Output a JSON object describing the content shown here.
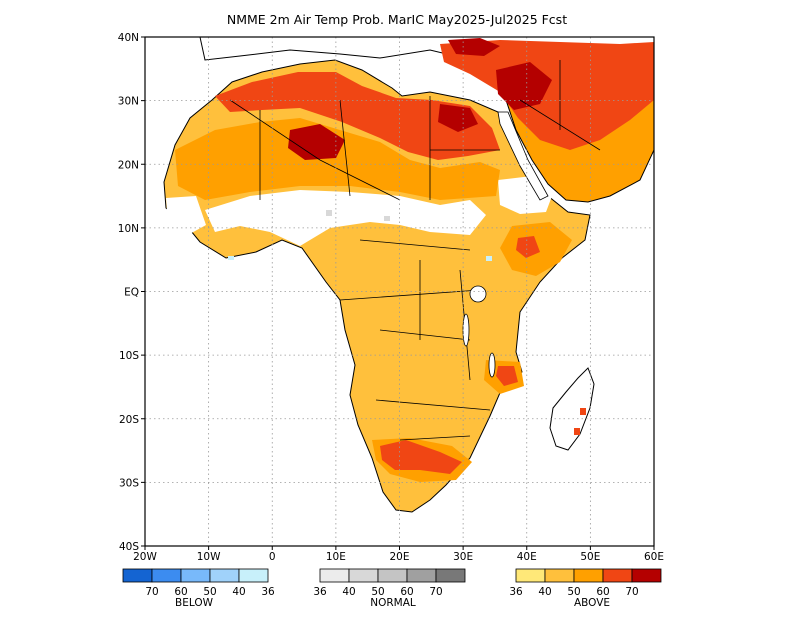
{
  "map": {
    "title": "NMME 2m Air Temp Prob. MarIC  May2025-Jul2025 Fcst",
    "lat_labels": [
      "40N",
      "30N",
      "20N",
      "10N",
      "EQ",
      "10S",
      "20S",
      "30S",
      "40S"
    ],
    "lat_values": [
      40,
      30,
      20,
      10,
      0,
      -10,
      -20,
      -30,
      -40
    ],
    "lon_labels": [
      "20W",
      "10W",
      "0",
      "10E",
      "20E",
      "30E",
      "40E",
      "50E",
      "60E"
    ],
    "lon_values": [
      -20,
      -10,
      0,
      10,
      20,
      30,
      40,
      50,
      60
    ],
    "extent": {
      "lon_min": -20,
      "lon_max": 60,
      "lat_min": -40,
      "lat_max": 40
    },
    "grid": "dotted"
  },
  "legend": {
    "below": {
      "title": "BELOW",
      "labels": [
        "70",
        "60",
        "50",
        "40",
        "36"
      ],
      "colors": [
        "#1464d2",
        "#3c8cf0",
        "#78b9fa",
        "#a0d2fa",
        "#c8f0fa"
      ]
    },
    "normal": {
      "title": "NORMAL",
      "labels": [
        "36",
        "40",
        "50",
        "60",
        "70"
      ],
      "colors": [
        "#ececec",
        "#d8d8d8",
        "#c4c4c4",
        "#a0a0a0",
        "#787878"
      ]
    },
    "above": {
      "title": "ABOVE",
      "labels": [
        "36",
        "40",
        "50",
        "60",
        "70"
      ],
      "colors": [
        "#ffe878",
        "#ffc03c",
        "#ffa000",
        "#f04614",
        "#b40000"
      ]
    }
  }
}
